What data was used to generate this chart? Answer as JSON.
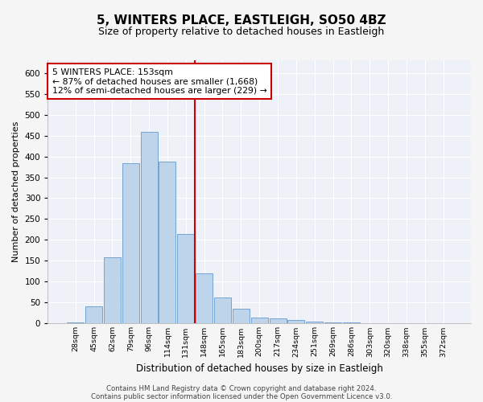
{
  "title": "5, WINTERS PLACE, EASTLEIGH, SO50 4BZ",
  "subtitle": "Size of property relative to detached houses in Eastleigh",
  "xlabel": "Distribution of detached houses by size in Eastleigh",
  "ylabel": "Number of detached properties",
  "categories": [
    "28sqm",
    "45sqm",
    "62sqm",
    "79sqm",
    "96sqm",
    "114sqm",
    "131sqm",
    "148sqm",
    "165sqm",
    "183sqm",
    "200sqm",
    "217sqm",
    "234sqm",
    "251sqm",
    "269sqm",
    "286sqm",
    "303sqm",
    "320sqm",
    "338sqm",
    "355sqm",
    "372sqm"
  ],
  "values": [
    2,
    42,
    158,
    383,
    459,
    388,
    215,
    120,
    62,
    35,
    14,
    13,
    8,
    5,
    3,
    2,
    1,
    0,
    0,
    0,
    0
  ],
  "bar_color": "#bdd4ea",
  "bar_edge_color": "#6699cc",
  "vline_color": "#cc0000",
  "annotation_text": "5 WINTERS PLACE: 153sqm\n← 87% of detached houses are smaller (1,668)\n12% of semi-detached houses are larger (229) →",
  "annotation_box_color": "#ffffff",
  "annotation_box_edge": "#cc0000",
  "footer1": "Contains HM Land Registry data © Crown copyright and database right 2024.",
  "footer2": "Contains public sector information licensed under the Open Government Licence v3.0.",
  "bg_color": "#eef2f8",
  "grid_color": "#ffffff",
  "fig_bg_color": "#f5f5f5",
  "ylim": [
    0,
    630
  ],
  "yticks": [
    0,
    50,
    100,
    150,
    200,
    250,
    300,
    350,
    400,
    450,
    500,
    550,
    600
  ],
  "vline_index": 6.5
}
